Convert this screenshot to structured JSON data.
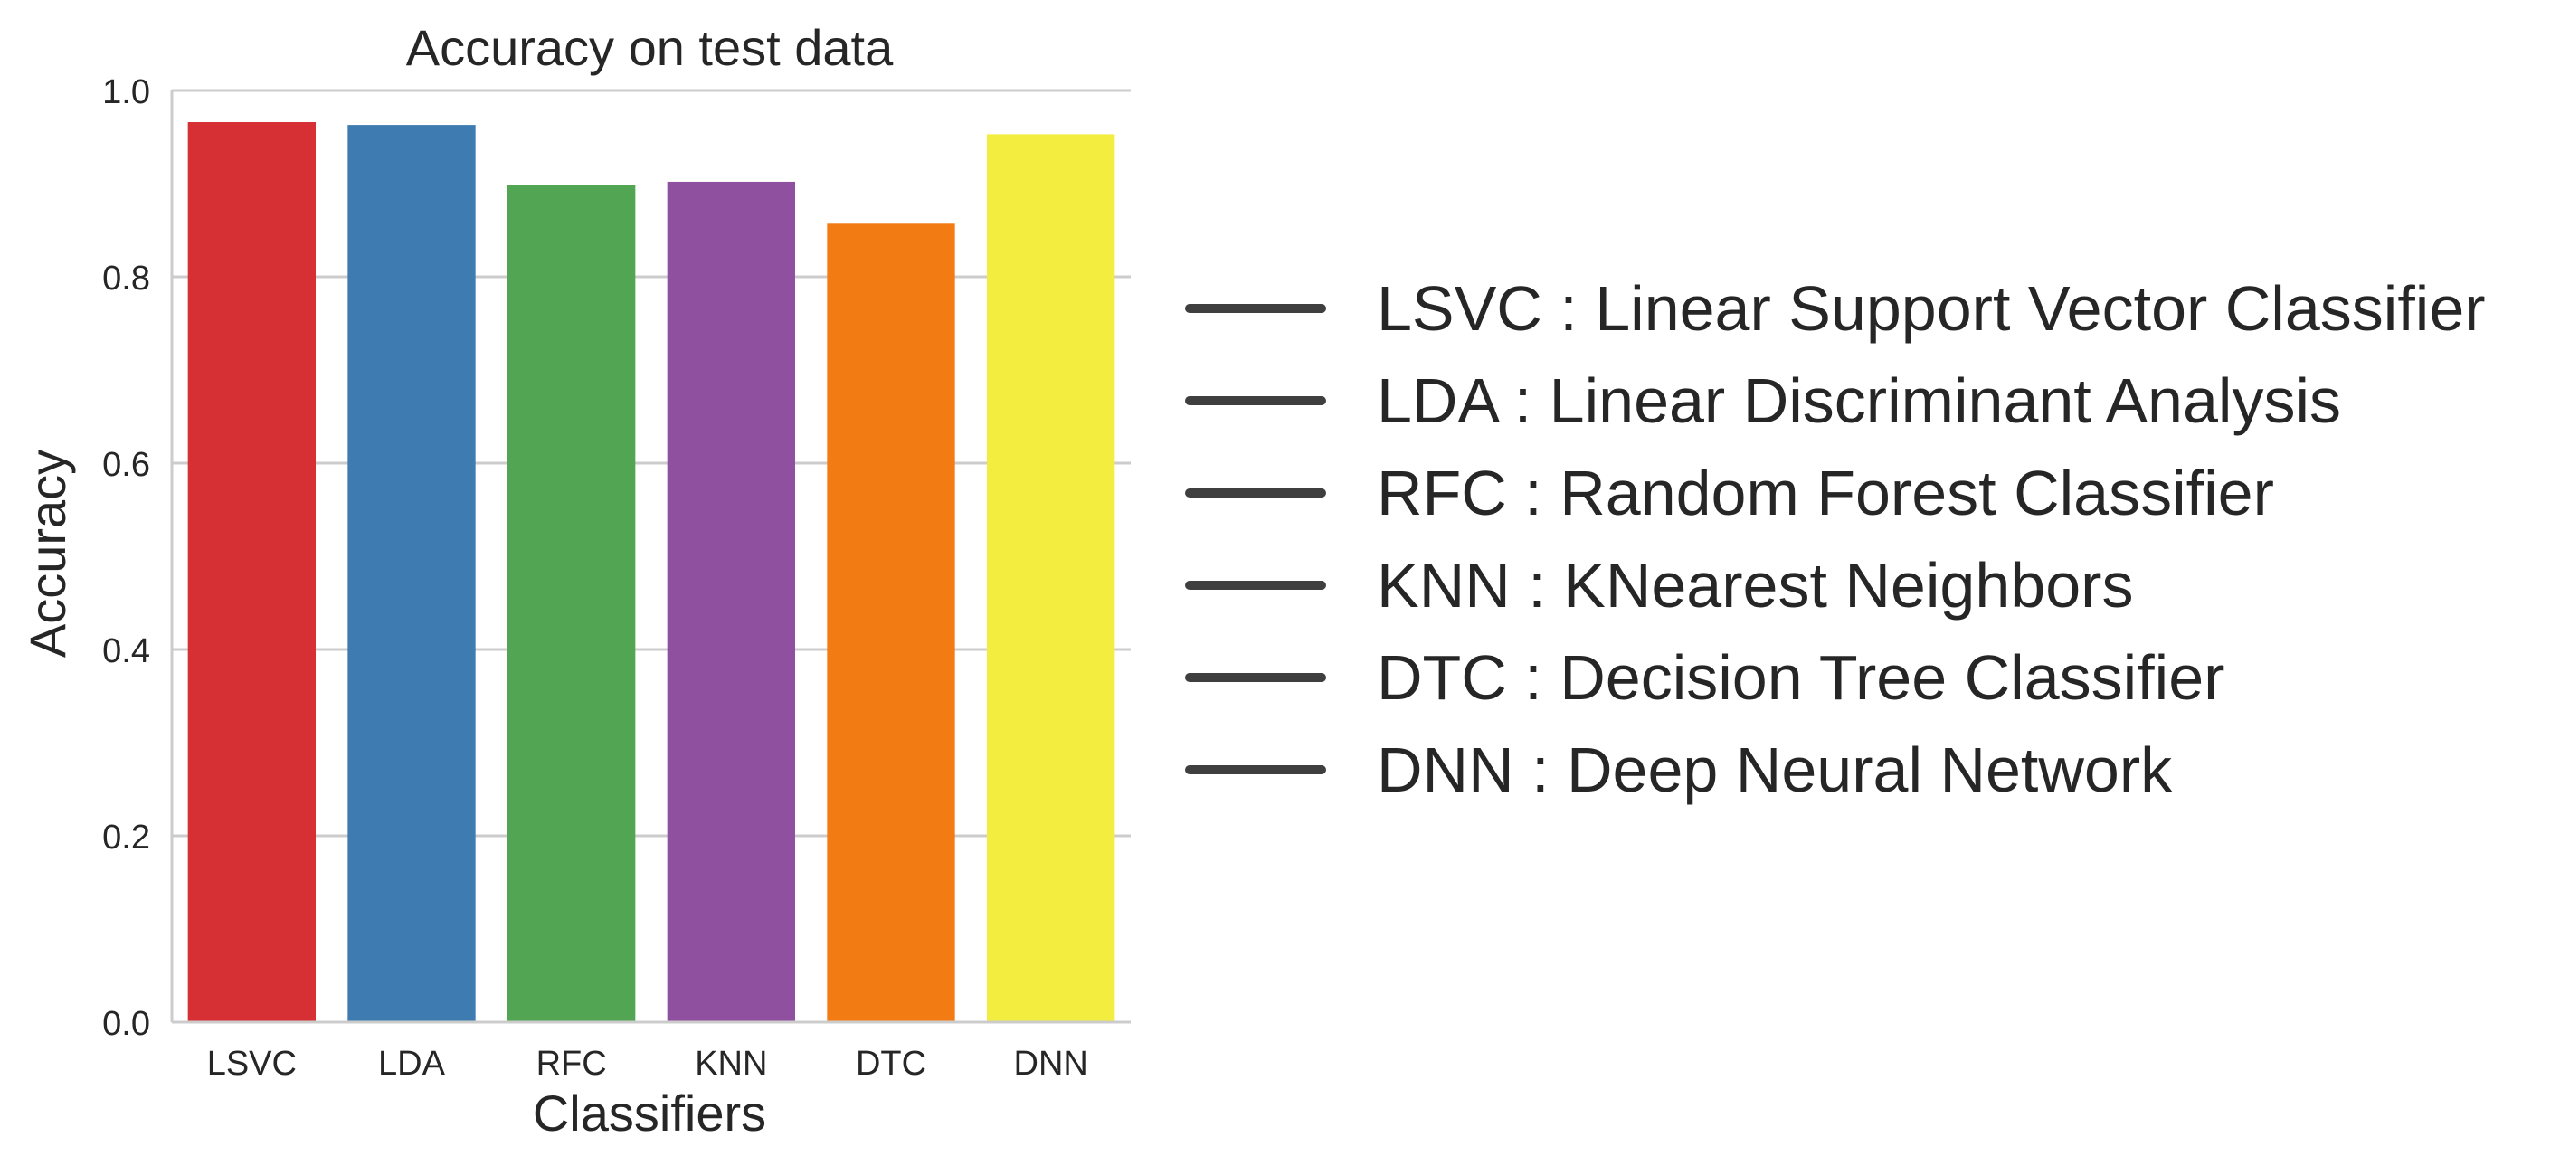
{
  "chart_data": {
    "type": "bar",
    "title": "Accuracy on test data",
    "xlabel": "Classifiers",
    "ylabel": "Accuracy",
    "categories": [
      "LSVC",
      "LDA",
      "RFC",
      "KNN",
      "DTC",
      "DNN"
    ],
    "values": [
      0.966,
      0.963,
      0.899,
      0.902,
      0.857,
      0.953
    ],
    "colors": [
      "#d62f34",
      "#3e7bb0",
      "#52a552",
      "#8f50a0",
      "#f27b14",
      "#f2ed3e"
    ],
    "ylim": [
      0,
      1.0
    ],
    "yticks": [
      "0.0",
      "0.2",
      "0.4",
      "0.6",
      "0.8",
      "1.0"
    ],
    "grid": true,
    "legend_placement": "right",
    "legend": [
      "LSVC : Linear Support Vector Classifier",
      "LDA : Linear Discriminant Analysis",
      "RFC : Random Forest Classifier",
      "KNN : KNearest Neighbors",
      "DTC : Decision Tree Classifier",
      "DNN : Deep Neural Network"
    ]
  }
}
